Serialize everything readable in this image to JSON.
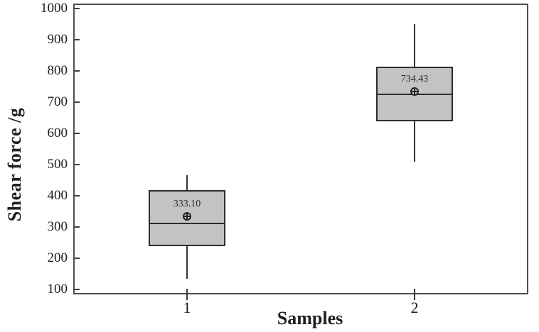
{
  "chart_data": {
    "type": "boxplot",
    "xlabel": "Samples",
    "ylabel": "Shear force /g",
    "ylim": [
      84,
      1016
    ],
    "yticks": [
      100,
      200,
      300,
      400,
      500,
      600,
      700,
      800,
      900,
      1000
    ],
    "categories": [
      "1",
      "2"
    ],
    "grid": false,
    "legend": "none",
    "series": [
      {
        "category": "1",
        "whisker_low": 135,
        "q1": 238,
        "median": 312,
        "q3": 418,
        "whisker_high": 467,
        "mean": 333.1,
        "mean_label": "333.10"
      },
      {
        "category": "2",
        "whisker_low": 510,
        "q1": 638,
        "median": 726,
        "q3": 814,
        "whisker_high": 950,
        "mean": 734.43,
        "mean_label": "734.43"
      }
    ],
    "colors": {
      "box_fill": "#c3c3c3",
      "box_border": "#2d2d2d",
      "whisker": "#353535",
      "frame": "#4f4f4f",
      "text": "#1f1f1f"
    }
  }
}
